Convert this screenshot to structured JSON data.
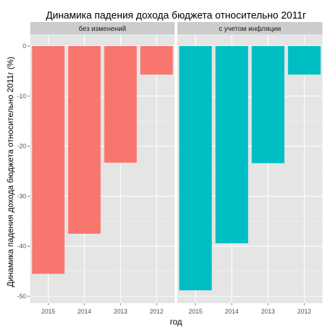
{
  "chart_data": {
    "type": "bar",
    "title": "Динамика падения дохода бюджета относительно 2011г",
    "xlabel": "год",
    "ylabel": "Динамика падения дохода бюджета относительно 2011г (%)",
    "categories": [
      "2015",
      "2014",
      "2013",
      "2012"
    ],
    "ylim": [
      -50,
      0
    ],
    "yticks": [
      0,
      -10,
      -20,
      -30,
      -40,
      -50
    ],
    "ytick_labels": [
      "0",
      "-10",
      "-20",
      "-30",
      "-40",
      "-50"
    ],
    "grid": true,
    "facets": [
      {
        "label": "без изменений",
        "color": "#F8766D",
        "values": [
          -45.5,
          -37.5,
          -23.3,
          -5.7
        ]
      },
      {
        "label": "с учетом инфляции",
        "color": "#00BFC4",
        "values": [
          -48.8,
          -39.4,
          -23.4,
          -5.7
        ]
      }
    ],
    "colors": {
      "panel_bg": "#E5E5E5",
      "strip_bg": "#CCCCCC",
      "grid_major": "#FFFFFF",
      "grid_minor": "#F2F2F2"
    }
  }
}
